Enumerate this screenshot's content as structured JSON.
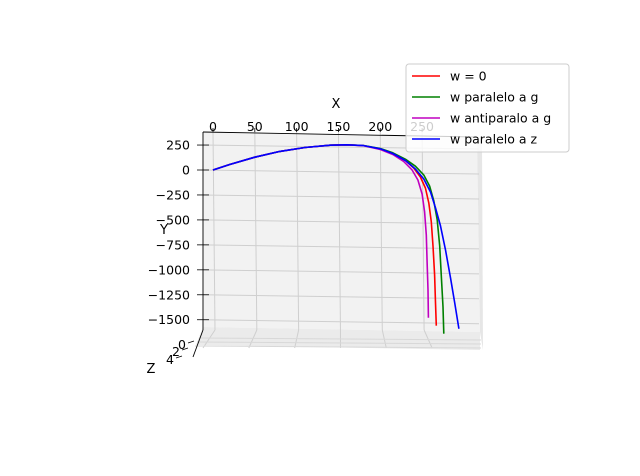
{
  "chart_data": {
    "type": "line",
    "title": "",
    "xlabel": "X",
    "ylabel": "Y",
    "zlabel": "Z",
    "xlim": [
      -5,
      325
    ],
    "ylim": [
      -1700,
      330
    ],
    "x_ticks": [
      "0",
      "50",
      "100",
      "150",
      "200",
      "250"
    ],
    "y_ticks": [
      "250",
      "0",
      "−250",
      "−500",
      "−750",
      "−1000",
      "−1250",
      "−1500"
    ],
    "z_ticks": [
      "0",
      "2",
      "4"
    ],
    "grid": true,
    "legend_position": "top-right",
    "series": [
      {
        "name": "w = 0",
        "color": "#ff0000",
        "x": [
          0,
          20,
          50,
          80,
          110,
          140,
          160,
          180,
          200,
          215,
          230,
          240,
          248,
          254,
          258,
          261,
          263,
          265,
          266,
          267
        ],
        "y": [
          0,
          55,
          128,
          186,
          225,
          248,
          252,
          244,
          210,
          165,
          95,
          20,
          -70,
          -180,
          -330,
          -520,
          -760,
          -1050,
          -1330,
          -1560
        ]
      },
      {
        "name": "w paralelo a g",
        "color": "#008000",
        "x": [
          0,
          20,
          50,
          80,
          110,
          140,
          160,
          180,
          200,
          215,
          230,
          242,
          252,
          259,
          264,
          268,
          271,
          273,
          275,
          276
        ],
        "y": [
          0,
          55,
          128,
          186,
          225,
          248,
          252,
          245,
          215,
          172,
          108,
          38,
          -50,
          -160,
          -310,
          -500,
          -760,
          -1060,
          -1370,
          -1640
        ]
      },
      {
        "name": "w antiparalo a g",
        "color": "#c000c0",
        "x": [
          0,
          20,
          50,
          80,
          110,
          140,
          160,
          180,
          200,
          215,
          228,
          238,
          245,
          250,
          253,
          255,
          256,
          257,
          257.5
        ],
        "y": [
          0,
          55,
          128,
          186,
          225,
          248,
          252,
          243,
          205,
          155,
          85,
          0,
          -100,
          -240,
          -420,
          -650,
          -920,
          -1200,
          -1480
        ]
      },
      {
        "name": "w paralelo a z",
        "color": "#0000ff",
        "x": [
          0,
          20,
          50,
          80,
          110,
          140,
          160,
          180,
          200,
          215,
          230,
          242,
          252,
          260,
          266,
          272,
          278,
          284,
          289,
          294
        ],
        "y": [
          0,
          55,
          128,
          186,
          225,
          248,
          252,
          244,
          212,
          165,
          95,
          10,
          -90,
          -220,
          -380,
          -560,
          -800,
          -1080,
          -1330,
          -1590
        ]
      }
    ]
  }
}
